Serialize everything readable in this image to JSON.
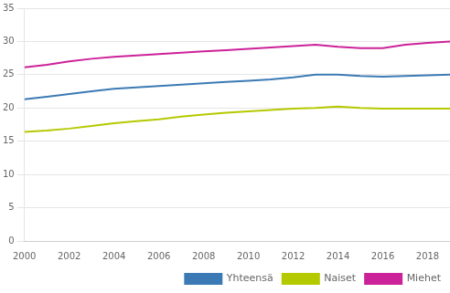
{
  "chart_data": {
    "type": "line",
    "x": [
      2000,
      2001,
      2002,
      2003,
      2004,
      2005,
      2006,
      2007,
      2008,
      2009,
      2010,
      2011,
      2012,
      2013,
      2014,
      2015,
      2016,
      2017,
      2018,
      2019
    ],
    "series": [
      {
        "name": "Yhteensä",
        "color": "#3c7ab5",
        "values": [
          21.3,
          21.7,
          22.1,
          22.5,
          22.9,
          23.1,
          23.3,
          23.5,
          23.7,
          23.9,
          24.1,
          24.3,
          24.6,
          25.0,
          25.0,
          24.8,
          24.7,
          24.8,
          24.9,
          25.0
        ]
      },
      {
        "name": "Naiset",
        "color": "#b5c900",
        "values": [
          16.4,
          16.6,
          16.9,
          17.3,
          17.7,
          18.0,
          18.3,
          18.7,
          19.0,
          19.3,
          19.5,
          19.7,
          19.9,
          20.0,
          20.2,
          20.0,
          19.9,
          19.9,
          19.9,
          19.9
        ]
      },
      {
        "name": "Miehet",
        "color": "#cc2299",
        "values": [
          26.1,
          26.5,
          27.0,
          27.4,
          27.7,
          27.9,
          28.1,
          28.3,
          28.5,
          28.7,
          28.9,
          29.1,
          29.3,
          29.5,
          29.2,
          29.0,
          29.0,
          29.5,
          29.8,
          30.0
        ]
      }
    ],
    "xlim": [
      2000,
      2019
    ],
    "xticks": [
      2000,
      2002,
      2004,
      2006,
      2008,
      2010,
      2012,
      2014,
      2016,
      2018
    ],
    "ylim": [
      0,
      35
    ],
    "yticks": [
      0,
      5,
      10,
      15,
      20,
      25,
      30,
      35
    ],
    "grid": true,
    "legend": "lower right"
  }
}
